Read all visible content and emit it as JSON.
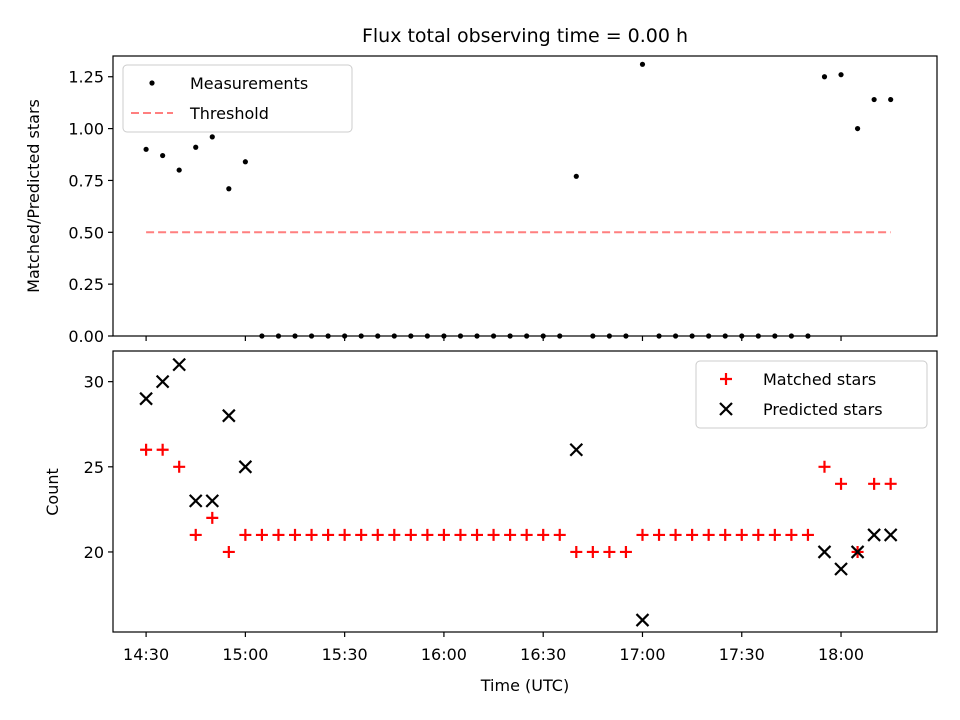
{
  "chart_data": [
    {
      "type": "scatter",
      "title": "Flux total observing time = 0.00 h",
      "xlabel": "",
      "ylabel": "Matched/Predicted stars",
      "ylim": [
        0,
        1.35
      ],
      "yticks": [
        "0.00",
        "0.25",
        "0.50",
        "0.75",
        "1.00",
        "1.25"
      ],
      "ytick_values": [
        0,
        0.25,
        0.5,
        0.75,
        1.0,
        1.25
      ],
      "legend_position": "top-left",
      "series": [
        {
          "name": "Measurements",
          "marker": "dot",
          "color": "#000000",
          "x": [
            "14:30",
            "14:35",
            "14:40",
            "14:45",
            "14:50",
            "14:55",
            "15:00",
            "15:05",
            "15:10",
            "15:15",
            "15:20",
            "15:25",
            "15:30",
            "15:35",
            "15:40",
            "15:45",
            "15:50",
            "15:55",
            "16:00",
            "16:05",
            "16:10",
            "16:15",
            "16:20",
            "16:25",
            "16:30",
            "16:35",
            "16:40",
            "16:45",
            "16:50",
            "16:55",
            "17:00",
            "17:05",
            "17:10",
            "17:15",
            "17:20",
            "17:25",
            "17:30",
            "17:35",
            "17:40",
            "17:45",
            "17:50",
            "17:55",
            "18:00",
            "18:05",
            "18:10",
            "18:15"
          ],
          "y": [
            0.9,
            0.87,
            0.8,
            0.91,
            0.96,
            0.71,
            0.84,
            0,
            0,
            0,
            0,
            0,
            0,
            0,
            0,
            0,
            0,
            0,
            0,
            0,
            0,
            0,
            0,
            0,
            0,
            0,
            0.77,
            0,
            0,
            0,
            1.31,
            0,
            0,
            0,
            0,
            0,
            0,
            0,
            0,
            0,
            0,
            1.25,
            1.26,
            1.0,
            1.14,
            1.14
          ]
        },
        {
          "name": "Threshold",
          "marker": "dashed-line",
          "color": "#ff7f7f",
          "x": [
            "14:30",
            "18:15"
          ],
          "y": [
            0.5,
            0.5
          ]
        }
      ]
    },
    {
      "type": "scatter",
      "title": "",
      "xlabel": "Time (UTC)",
      "ylabel": "Count",
      "ylim": [
        15.3,
        31.8
      ],
      "xlim": [
        "14:20",
        "18:29"
      ],
      "yticks": [
        "20",
        "25",
        "30"
      ],
      "ytick_values": [
        20,
        25,
        30
      ],
      "xticks": [
        "14:30",
        "15:00",
        "15:30",
        "16:00",
        "16:30",
        "17:00",
        "17:30",
        "18:00"
      ],
      "legend_position": "top-right",
      "series": [
        {
          "name": "Matched stars",
          "marker": "plus",
          "color": "#ff0000",
          "x": [
            "14:30",
            "14:35",
            "14:40",
            "14:45",
            "14:50",
            "14:55",
            "15:00",
            "15:05",
            "15:10",
            "15:15",
            "15:20",
            "15:25",
            "15:30",
            "15:35",
            "15:40",
            "15:45",
            "15:50",
            "15:55",
            "16:00",
            "16:05",
            "16:10",
            "16:15",
            "16:20",
            "16:25",
            "16:30",
            "16:35",
            "16:40",
            "16:45",
            "16:50",
            "16:55",
            "17:00",
            "17:05",
            "17:10",
            "17:15",
            "17:20",
            "17:25",
            "17:30",
            "17:35",
            "17:40",
            "17:45",
            "17:50",
            "17:55",
            "18:00",
            "18:05",
            "18:10",
            "18:15"
          ],
          "y": [
            26,
            26,
            25,
            21,
            22,
            20,
            21,
            21,
            21,
            21,
            21,
            21,
            21,
            21,
            21,
            21,
            21,
            21,
            21,
            21,
            21,
            21,
            21,
            21,
            21,
            21,
            20,
            20,
            20,
            20,
            21,
            21,
            21,
            21,
            21,
            21,
            21,
            21,
            21,
            21,
            21,
            25,
            24,
            20,
            24,
            24
          ]
        },
        {
          "name": "Predicted stars",
          "marker": "x",
          "color": "#000000",
          "x": [
            "14:30",
            "14:35",
            "14:40",
            "14:45",
            "14:50",
            "14:55",
            "15:00",
            "16:40",
            "17:00",
            "17:55",
            "18:00",
            "18:05",
            "18:10",
            "18:15"
          ],
          "y": [
            29,
            30,
            31,
            23,
            23,
            28,
            25,
            26,
            16,
            20,
            19,
            20,
            21,
            21
          ]
        }
      ]
    }
  ]
}
